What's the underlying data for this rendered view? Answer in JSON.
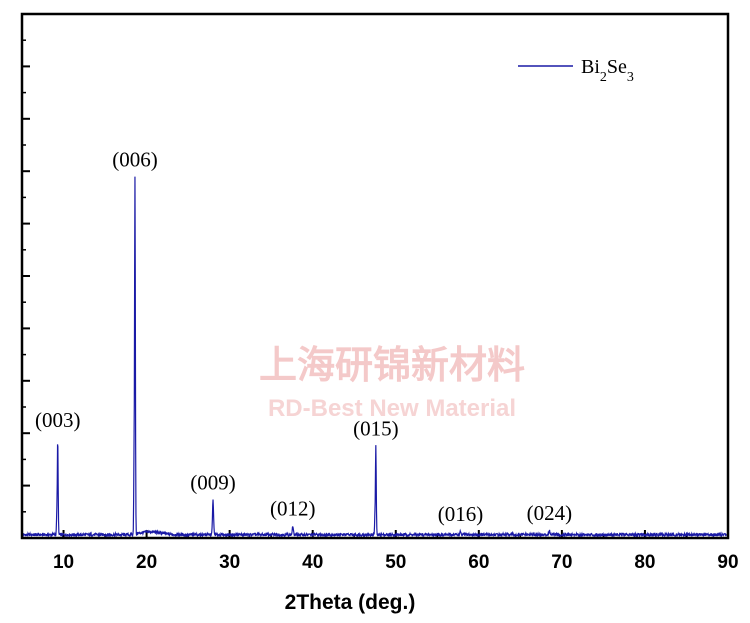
{
  "chart_data": {
    "type": "line",
    "xlabel": "2Theta (deg.)",
    "ylabel": "",
    "xlim": [
      5,
      90
    ],
    "ylim": [
      0,
      100
    ],
    "x_ticks": [
      10,
      20,
      30,
      40,
      50,
      60,
      70,
      80,
      90
    ],
    "legend": {
      "position": "top-right",
      "entries": [
        "Bi2Se3"
      ]
    },
    "series": [
      {
        "name": "Bi2Se3",
        "color": "#1a1aa6",
        "peaks": [
          {
            "x": 9.3,
            "y": 18.5,
            "label": "(003)"
          },
          {
            "x": 18.6,
            "y": 68.2,
            "label": "(006)"
          },
          {
            "x": 28.0,
            "y": 6.6,
            "label": "(009)"
          },
          {
            "x": 37.6,
            "y": 1.6,
            "label": "(012)"
          },
          {
            "x": 47.6,
            "y": 16.9,
            "label": "(015)"
          },
          {
            "x": 57.8,
            "y": 0.6,
            "label": "(016)"
          },
          {
            "x": 68.5,
            "y": 0.8,
            "label": "(024)"
          }
        ]
      }
    ]
  },
  "watermark": {
    "line1": "上海研锦新材料",
    "line2": "RD-Best New Material"
  }
}
